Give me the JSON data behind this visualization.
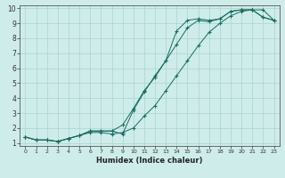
{
  "xlabel": "Humidex (Indice chaleur)",
  "bg_color": "#ceecea",
  "grid_color": "#aad4d0",
  "line_color": "#1a6b60",
  "xlim": [
    -0.5,
    23.5
  ],
  "ylim": [
    0.8,
    10.2
  ],
  "xticks": [
    0,
    1,
    2,
    3,
    4,
    5,
    6,
    7,
    8,
    9,
    10,
    11,
    12,
    13,
    14,
    15,
    16,
    17,
    18,
    19,
    20,
    21,
    22,
    23
  ],
  "yticks": [
    1,
    2,
    3,
    4,
    5,
    6,
    7,
    8,
    9,
    10
  ],
  "line1_x": [
    0,
    1,
    2,
    3,
    4,
    5,
    6,
    7,
    8,
    9,
    10,
    11,
    12,
    13,
    14,
    15,
    16,
    17,
    18,
    19,
    20,
    21,
    22,
    23
  ],
  "line1_y": [
    1.4,
    1.2,
    1.2,
    1.1,
    1.3,
    1.5,
    1.8,
    1.8,
    1.8,
    1.6,
    3.2,
    4.4,
    5.5,
    6.5,
    7.6,
    8.7,
    9.2,
    9.1,
    9.3,
    9.8,
    9.9,
    9.9,
    9.4,
    9.2
  ],
  "line2_x": [
    0,
    1,
    2,
    3,
    4,
    5,
    6,
    7,
    8,
    9,
    10,
    11,
    12,
    13,
    14,
    15,
    16,
    17,
    18,
    19,
    20,
    21,
    22,
    23
  ],
  "line2_y": [
    1.4,
    1.2,
    1.2,
    1.1,
    1.3,
    1.5,
    1.8,
    1.8,
    1.8,
    2.2,
    3.3,
    4.5,
    5.4,
    6.5,
    8.5,
    9.2,
    9.3,
    9.2,
    9.3,
    9.8,
    9.9,
    9.9,
    9.4,
    9.2
  ],
  "line3_x": [
    0,
    1,
    2,
    3,
    4,
    5,
    6,
    7,
    8,
    9,
    10,
    11,
    12,
    13,
    14,
    15,
    16,
    17,
    18,
    19,
    20,
    21,
    22,
    23
  ],
  "line3_y": [
    1.4,
    1.2,
    1.2,
    1.1,
    1.3,
    1.5,
    1.7,
    1.7,
    1.6,
    1.7,
    2.0,
    2.8,
    3.5,
    4.5,
    5.5,
    6.5,
    7.5,
    8.4,
    9.0,
    9.5,
    9.8,
    9.9,
    9.9,
    9.2
  ],
  "xlabel_fontsize": 6.0,
  "tick_fontsize_x": 4.5,
  "tick_fontsize_y": 5.5
}
